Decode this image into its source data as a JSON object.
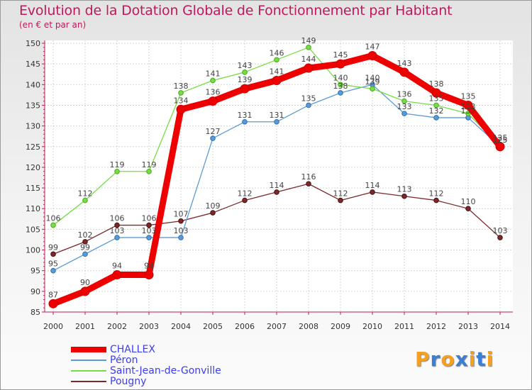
{
  "title": "Evolution de la Dotation Globale de Fonctionnement par Habitant",
  "subtitle": "(en € et par an)",
  "logo": {
    "text": "Proxiti",
    "colors": [
      "#f4a020",
      "#3a7fd5",
      "#f4a020",
      "#3a7fd5",
      "#f4a020",
      "#3a7fd5",
      "#f4a020"
    ]
  },
  "chart_data": {
    "type": "line",
    "x": [
      "2000",
      "2001",
      "2002",
      "2003",
      "2004",
      "2005",
      "2006",
      "2007",
      "2008",
      "2009",
      "2010",
      "2011",
      "2012",
      "2013",
      "2014"
    ],
    "ylim": [
      85,
      150
    ],
    "yticks": [
      85,
      90,
      95,
      100,
      105,
      110,
      115,
      120,
      125,
      130,
      135,
      140,
      145,
      150
    ],
    "grid": true,
    "legend_position": "bottom-left",
    "series": [
      {
        "name": "CHALLEX",
        "color": "#ee0000",
        "values": [
          87,
          90,
          94,
          94,
          134,
          136,
          139,
          141,
          144,
          145,
          147,
          143,
          138,
          135,
          125
        ]
      },
      {
        "name": "Péron",
        "color": "#5b9bd5",
        "values": [
          95,
          99,
          103,
          103,
          103,
          127,
          131,
          131,
          135,
          138,
          140,
          133,
          132,
          132,
          125
        ]
      },
      {
        "name": "Saint-Jean-de-Gonville",
        "color": "#77dd44",
        "values": [
          106,
          112,
          119,
          119,
          138,
          141,
          143,
          146,
          149,
          140,
          139,
          136,
          135,
          133,
          125
        ]
      },
      {
        "name": "Pougny",
        "color": "#7a2a2a",
        "values": [
          99,
          102,
          106,
          106,
          107,
          109,
          112,
          114,
          116,
          112,
          114,
          113,
          112,
          110,
          103
        ]
      }
    ]
  }
}
